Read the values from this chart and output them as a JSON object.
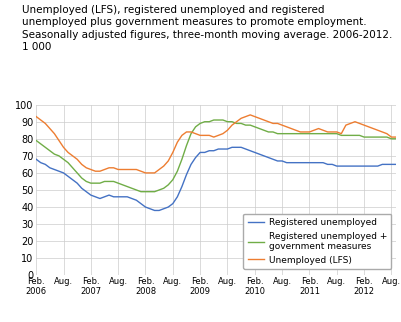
{
  "title": "Unemployed (LFS), registered unemployed and registered\nunemployed plus government measures to promote employment.\nSeasonally adjusted figures, three-month moving average. 2006-2012.\n1 000",
  "title_fontsize": 7.5,
  "ylim": [
    0,
    100
  ],
  "yticks": [
    0,
    10,
    20,
    30,
    40,
    50,
    60,
    70,
    80,
    90,
    100
  ],
  "xtick_positions": [
    0,
    6,
    12,
    18,
    24,
    30,
    36,
    42,
    48,
    54,
    60,
    66,
    72,
    78
  ],
  "xtick_labels": [
    "Feb.\n2006",
    "Aug.",
    "Feb.\n2007",
    "Aug.",
    "Feb.\n2008",
    "Aug.",
    "Feb.\n2009",
    "Aug.",
    "Feb.\n2010",
    "Aug.",
    "Feb.\n2011",
    "Aug.",
    "Feb.\n2012",
    "Aug."
  ],
  "blue_color": "#4472c4",
  "green_color": "#70ad47",
  "orange_color": "#ed7d31",
  "n_points": 80,
  "registered_unemployed": [
    68,
    66,
    65,
    63,
    62,
    61,
    60,
    58,
    56,
    54,
    51,
    49,
    47,
    46,
    45,
    46,
    47,
    46,
    46,
    46,
    46,
    45,
    44,
    42,
    40,
    39,
    38,
    38,
    39,
    40,
    42,
    46,
    52,
    59,
    65,
    69,
    72,
    72,
    73,
    73,
    74,
    74,
    74,
    75,
    75,
    75,
    74,
    73,
    72,
    71,
    70,
    69,
    68,
    67,
    67,
    66,
    66,
    66,
    66,
    66,
    66,
    66,
    66,
    66,
    65,
    65,
    64,
    64,
    64,
    64,
    64,
    64,
    64,
    64,
    64,
    64,
    65,
    65,
    65,
    65
  ],
  "registered_unemployed_plus": [
    79,
    77,
    75,
    73,
    71,
    70,
    68,
    66,
    63,
    60,
    57,
    55,
    54,
    54,
    54,
    55,
    55,
    55,
    54,
    53,
    52,
    51,
    50,
    49,
    49,
    49,
    49,
    50,
    51,
    53,
    56,
    61,
    68,
    76,
    83,
    87,
    89,
    90,
    90,
    91,
    91,
    91,
    90,
    90,
    89,
    89,
    88,
    88,
    87,
    86,
    85,
    84,
    84,
    83,
    83,
    83,
    83,
    83,
    83,
    83,
    83,
    83,
    83,
    83,
    83,
    83,
    83,
    82,
    82,
    82,
    82,
    82,
    81,
    81,
    81,
    81,
    81,
    81,
    80,
    80
  ],
  "unemployed_lfs": [
    93,
    91,
    89,
    86,
    83,
    79,
    75,
    72,
    70,
    68,
    65,
    63,
    62,
    61,
    61,
    62,
    63,
    63,
    62,
    62,
    62,
    62,
    62,
    61,
    60,
    60,
    60,
    62,
    64,
    67,
    72,
    78,
    82,
    84,
    84,
    83,
    82,
    82,
    82,
    81,
    82,
    83,
    85,
    88,
    90,
    92,
    93,
    94,
    93,
    92,
    91,
    90,
    89,
    89,
    88,
    87,
    86,
    85,
    84,
    84,
    84,
    85,
    86,
    85,
    84,
    84,
    84,
    83,
    88,
    89,
    90,
    89,
    88,
    87,
    86,
    85,
    84,
    83,
    81,
    81
  ],
  "legend_labels": [
    "Registered unemployed",
    "Registered unemployed +\ngovernment measures",
    "Unemployed (LFS)"
  ]
}
